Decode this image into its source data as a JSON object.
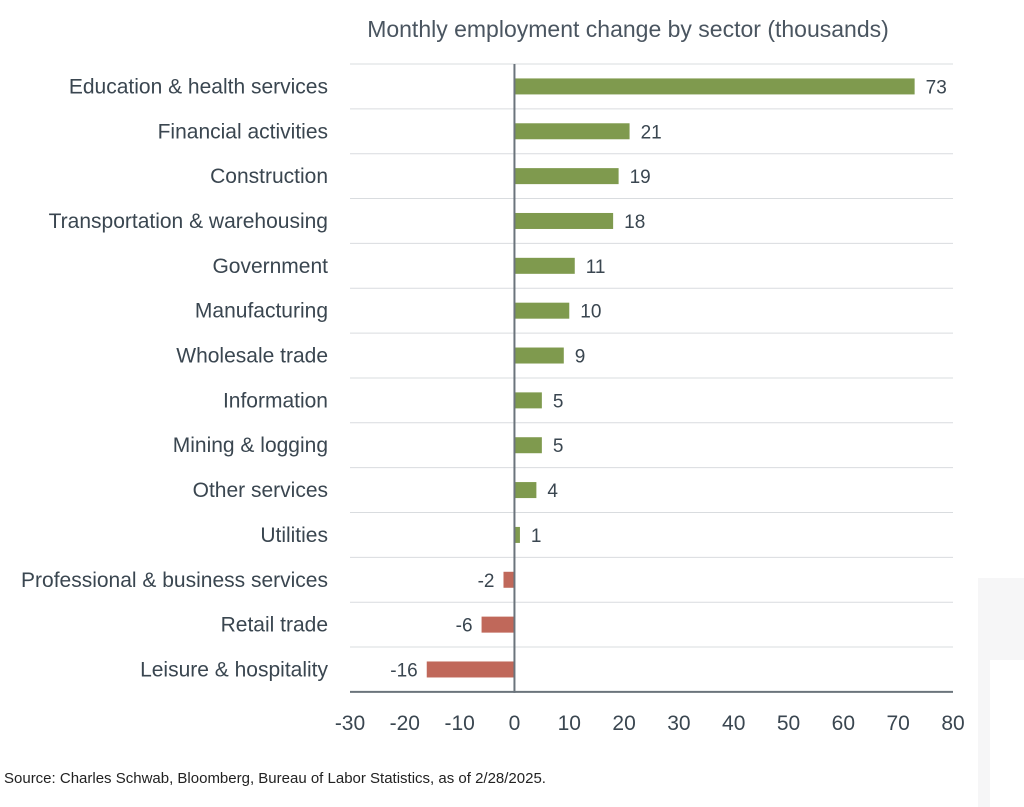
{
  "chart_data": {
    "type": "bar",
    "orientation": "horizontal",
    "title": "Monthly employment change by sector (thousands)",
    "categories": [
      "Education & health services",
      "Financial activities",
      "Construction",
      "Transportation & warehousing",
      "Government",
      "Manufacturing",
      "Wholesale trade",
      "Information",
      "Mining & logging",
      "Other services",
      "Utilities",
      "Professional & business services",
      "Retail trade",
      "Leisure & hospitality"
    ],
    "values": [
      73,
      21,
      19,
      18,
      11,
      10,
      9,
      5,
      5,
      4,
      1,
      -2,
      -6,
      -16
    ],
    "value_labels": [
      "73",
      "21",
      "19",
      "18",
      "11",
      "10",
      "9",
      "5",
      "5",
      "4",
      "1",
      "-2",
      "-6",
      "-16"
    ],
    "xlim": [
      -30,
      80
    ],
    "xticks": [
      -30,
      -20,
      -10,
      0,
      10,
      20,
      30,
      40,
      50,
      60,
      70,
      80
    ],
    "xtick_labels": [
      "-30",
      "-20",
      "-10",
      "0",
      "10",
      "20",
      "30",
      "40",
      "50",
      "60",
      "70",
      "80"
    ],
    "positive_color": "#7f9a4e",
    "negative_color": "#c0685a",
    "grid": true
  },
  "source": "Source: Charles Schwab, Bloomberg, Bureau of Labor Statistics, as of 2/28/2025."
}
